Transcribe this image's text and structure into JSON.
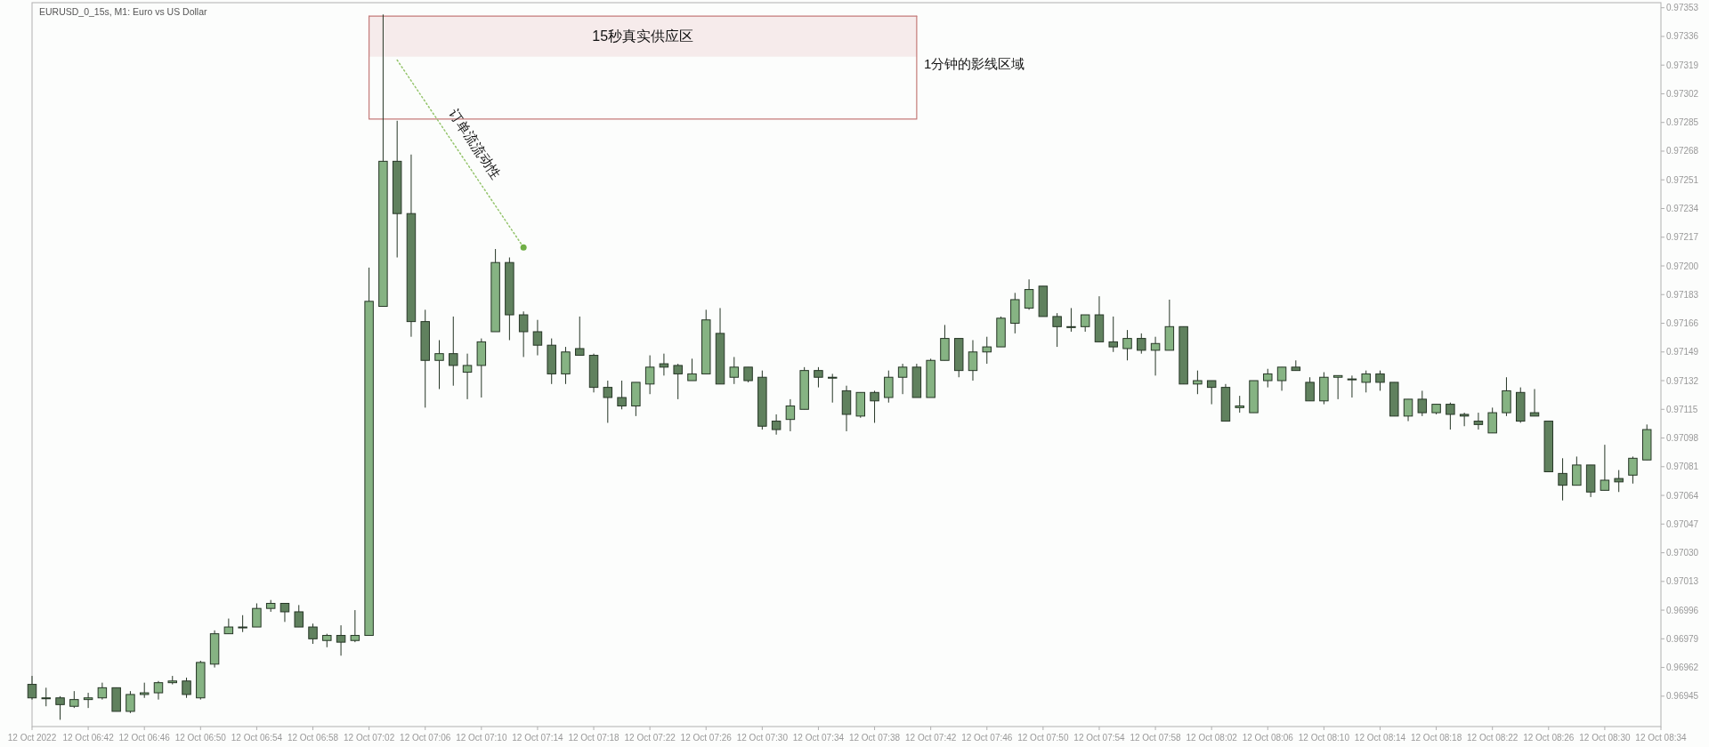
{
  "chart_data": {
    "type": "candlestick",
    "title": "EURUSD_0_15s, M1: Euro vs US Dollar",
    "colors": [
      "#60815e",
      "#86b383",
      "#60815e",
      "#86b383",
      "#86b383",
      "#86b383",
      "#60815e",
      "#86b383",
      "#86b383",
      "#86b383",
      "#86b383",
      "#60815e",
      "#86b383",
      "#86b383",
      "#86b383",
      "#86b383",
      "#86b383",
      "#86b383",
      "#60815e",
      "#60815e",
      "#60815e",
      "#86b383",
      "#60815e",
      "#86b383",
      "#86b383",
      "#86b383",
      "#60815e",
      "#60815e",
      "#60815e",
      "#86b383",
      "#60815e",
      "#86b383",
      "#86b383",
      "#86b383",
      "#60815e",
      "#60815e",
      "#60815e",
      "#60815e",
      "#86b383",
      "#60815e",
      "#60815e",
      "#60815e",
      "#60815e",
      "#86b383",
      "#86b383",
      "#60815e",
      "#60815e",
      "#86b383",
      "#86b383",
      "#60815e",
      "#86b383",
      "#60815e",
      "#60815e",
      "#60815e",
      "#86b383",
      "#86b383",
      "#60815e",
      "#86b383",
      "#60815e",
      "#86b383",
      "#60815e",
      "#86b383",
      "#86b383",
      "#60815e",
      "#86b383",
      "#86b383",
      "#60815e",
      "#86b383",
      "#86b383",
      "#86b383",
      "#86b383",
      "#86b383",
      "#60815e",
      "#60815e",
      "#86b383",
      "#86b383",
      "#60815e",
      "#60815e",
      "#86b383",
      "#60815e",
      "#86b383",
      "#86b383",
      "#60815e",
      "#86b383",
      "#60815e",
      "#60815e",
      "#86b383",
      "#86b383",
      "#86b383",
      "#86b383",
      "#60815e",
      "#60815e",
      "#86b383",
      "#86b383",
      "#86b383",
      "#86b383",
      "#60815e",
      "#60815e",
      "#86b383",
      "#60815e",
      "#86b383",
      "#60815e",
      "#60815e",
      "#60815e",
      "#86b383",
      "#86b383",
      "#60815e",
      "#60815e",
      "#60815e",
      "#60815e",
      "#86b383",
      "#60815e",
      "#86b383",
      "#60815e",
      "#86b383",
      "#86b383"
    ],
    "x": [
      "2022-10-12T06:38",
      "2022-10-12T06:39",
      "2022-10-12T06:40",
      "2022-10-12T06:41",
      "2022-10-12T06:42",
      "2022-10-12T06:43",
      "2022-10-12T06:44",
      "2022-10-12T06:45",
      "2022-10-12T06:46",
      "2022-10-12T06:47",
      "2022-10-12T06:48",
      "2022-10-12T06:49",
      "2022-10-12T06:50",
      "2022-10-12T06:51",
      "2022-10-12T06:52",
      "2022-10-12T06:53",
      "2022-10-12T06:54",
      "2022-10-12T06:55",
      "2022-10-12T06:56",
      "2022-10-12T06:57",
      "2022-10-12T06:58",
      "2022-10-12T06:59",
      "2022-10-12T07:00",
      "2022-10-12T07:01",
      "2022-10-12T07:02",
      "2022-10-12T07:03",
      "2022-10-12T07:04",
      "2022-10-12T07:05",
      "2022-10-12T07:06",
      "2022-10-12T07:07",
      "2022-10-12T07:08",
      "2022-10-12T07:09",
      "2022-10-12T07:10",
      "2022-10-12T07:11",
      "2022-10-12T07:12",
      "2022-10-12T07:13",
      "2022-10-12T07:14",
      "2022-10-12T07:15",
      "2022-10-12T07:16",
      "2022-10-12T07:17",
      "2022-10-12T07:18",
      "2022-10-12T07:19",
      "2022-10-12T07:20",
      "2022-10-12T07:21",
      "2022-10-12T07:22",
      "2022-10-12T07:23",
      "2022-10-12T07:24",
      "2022-10-12T07:25",
      "2022-10-12T07:26",
      "2022-10-12T07:27",
      "2022-10-12T07:28",
      "2022-10-12T07:29",
      "2022-10-12T07:30",
      "2022-10-12T07:31",
      "2022-10-12T07:32",
      "2022-10-12T07:33",
      "2022-10-12T07:34",
      "2022-10-12T07:35",
      "2022-10-12T07:36",
      "2022-10-12T07:37",
      "2022-10-12T07:38",
      "2022-10-12T07:39",
      "2022-10-12T07:40",
      "2022-10-12T07:41",
      "2022-10-12T07:42",
      "2022-10-12T07:43",
      "2022-10-12T07:44",
      "2022-10-12T07:45",
      "2022-10-12T07:46",
      "2022-10-12T07:47",
      "2022-10-12T07:48",
      "2022-10-12T07:49",
      "2022-10-12T07:50",
      "2022-10-12T07:51",
      "2022-10-12T07:52",
      "2022-10-12T07:53",
      "2022-10-12T07:54",
      "2022-10-12T07:55",
      "2022-10-12T07:56",
      "2022-10-12T07:57",
      "2022-10-12T07:58",
      "2022-10-12T07:59",
      "2022-10-12T08:00",
      "2022-10-12T08:01",
      "2022-10-12T08:02",
      "2022-10-12T08:03",
      "2022-10-12T08:04",
      "2022-10-12T08:05",
      "2022-10-12T08:06",
      "2022-10-12T08:07",
      "2022-10-12T08:08",
      "2022-10-12T08:09",
      "2022-10-12T08:10",
      "2022-10-12T08:11",
      "2022-10-12T08:12",
      "2022-10-12T08:13",
      "2022-10-12T08:14",
      "2022-10-12T08:15",
      "2022-10-12T08:16",
      "2022-10-12T08:17",
      "2022-10-12T08:18",
      "2022-10-12T08:19",
      "2022-10-12T08:20",
      "2022-10-12T08:21",
      "2022-10-12T08:22",
      "2022-10-12T08:23",
      "2022-10-12T08:24",
      "2022-10-12T08:25",
      "2022-10-12T08:26",
      "2022-10-12T08:27",
      "2022-10-12T08:28",
      "2022-10-12T08:29",
      "2022-10-12T08:30",
      "2022-10-12T08:31",
      "2022-10-12T08:32",
      "2022-10-12T08:33"
    ],
    "ohlc": [
      [
        0.96952,
        0.96957,
        0.96943,
        0.96944
      ],
      [
        0.96944,
        0.9695,
        0.96939,
        0.96944
      ],
      [
        0.96944,
        0.96945,
        0.96931,
        0.9694
      ],
      [
        0.96939,
        0.96948,
        0.96938,
        0.96943
      ],
      [
        0.96943,
        0.96947,
        0.96938,
        0.96944
      ],
      [
        0.96944,
        0.96953,
        0.96943,
        0.9695
      ],
      [
        0.9695,
        0.9695,
        0.96936,
        0.96936
      ],
      [
        0.96936,
        0.96948,
        0.96935,
        0.96946
      ],
      [
        0.96946,
        0.96953,
        0.96944,
        0.96947
      ],
      [
        0.96947,
        0.96954,
        0.96943,
        0.96953
      ],
      [
        0.96953,
        0.96957,
        0.96952,
        0.96954
      ],
      [
        0.96954,
        0.96956,
        0.96944,
        0.96946
      ],
      [
        0.96944,
        0.96966,
        0.96943,
        0.96965
      ],
      [
        0.96964,
        0.96984,
        0.96962,
        0.96982
      ],
      [
        0.96982,
        0.96991,
        0.96982,
        0.96986
      ],
      [
        0.96986,
        0.96993,
        0.96983,
        0.96986
      ],
      [
        0.96986,
        0.97,
        0.96986,
        0.96997
      ],
      [
        0.96997,
        0.97002,
        0.96995,
        0.97
      ],
      [
        0.97,
        0.97,
        0.96989,
        0.96995
      ],
      [
        0.96995,
        0.96999,
        0.96986,
        0.96986
      ],
      [
        0.96986,
        0.96988,
        0.96976,
        0.96979
      ],
      [
        0.96978,
        0.96982,
        0.96974,
        0.96981
      ],
      [
        0.96981,
        0.96987,
        0.96969,
        0.96977
      ],
      [
        0.96978,
        0.96996,
        0.96977,
        0.96981
      ],
      [
        0.96981,
        0.97199,
        0.96981,
        0.97179
      ],
      [
        0.97176,
        0.97349,
        0.97176,
        0.97262
      ],
      [
        0.97262,
        0.97286,
        0.97205,
        0.97231
      ],
      [
        0.97231,
        0.97266,
        0.97158,
        0.97167
      ],
      [
        0.97167,
        0.97174,
        0.97116,
        0.97144
      ],
      [
        0.97144,
        0.97156,
        0.97127,
        0.97148
      ],
      [
        0.97148,
        0.9717,
        0.97129,
        0.97141
      ],
      [
        0.97137,
        0.97148,
        0.97121,
        0.97141
      ],
      [
        0.97141,
        0.97157,
        0.97122,
        0.97155
      ],
      [
        0.97161,
        0.9721,
        0.97161,
        0.97202
      ],
      [
        0.97202,
        0.97205,
        0.97156,
        0.97171
      ],
      [
        0.97171,
        0.97173,
        0.97146,
        0.97161
      ],
      [
        0.97161,
        0.97168,
        0.97147,
        0.97153
      ],
      [
        0.97153,
        0.97157,
        0.9713,
        0.97136
      ],
      [
        0.97136,
        0.97152,
        0.9713,
        0.97149
      ],
      [
        0.97151,
        0.9717,
        0.97147,
        0.97147
      ],
      [
        0.97147,
        0.97148,
        0.97125,
        0.97128
      ],
      [
        0.97128,
        0.97132,
        0.97107,
        0.97122
      ],
      [
        0.97122,
        0.97132,
        0.97115,
        0.97117
      ],
      [
        0.97117,
        0.97131,
        0.97111,
        0.97131
      ],
      [
        0.9713,
        0.97147,
        0.97124,
        0.9714
      ],
      [
        0.97142,
        0.97148,
        0.97135,
        0.9714
      ],
      [
        0.97141,
        0.97142,
        0.97121,
        0.97136
      ],
      [
        0.97132,
        0.97145,
        0.97132,
        0.97136
      ],
      [
        0.97136,
        0.97174,
        0.97136,
        0.97168
      ],
      [
        0.9716,
        0.97175,
        0.9713,
        0.9713
      ],
      [
        0.97134,
        0.97146,
        0.9713,
        0.9714
      ],
      [
        0.9714,
        0.9714,
        0.97131,
        0.97132
      ],
      [
        0.97134,
        0.97138,
        0.97103,
        0.97105
      ],
      [
        0.97108,
        0.97112,
        0.971,
        0.97103
      ],
      [
        0.97109,
        0.97121,
        0.97102,
        0.97117
      ],
      [
        0.97115,
        0.9714,
        0.97115,
        0.97138
      ],
      [
        0.97138,
        0.9714,
        0.97128,
        0.97134
      ],
      [
        0.97134,
        0.97136,
        0.97119,
        0.97134
      ],
      [
        0.97126,
        0.97129,
        0.97102,
        0.97112
      ],
      [
        0.97111,
        0.97125,
        0.9711,
        0.97125
      ],
      [
        0.97125,
        0.97126,
        0.97107,
        0.9712
      ],
      [
        0.97122,
        0.97138,
        0.97119,
        0.97134
      ],
      [
        0.97134,
        0.97142,
        0.97124,
        0.9714
      ],
      [
        0.9714,
        0.97142,
        0.97122,
        0.97122
      ],
      [
        0.97122,
        0.97145,
        0.97122,
        0.97144
      ],
      [
        0.97144,
        0.97165,
        0.97144,
        0.97157
      ],
      [
        0.97157,
        0.97157,
        0.97134,
        0.97138
      ],
      [
        0.97138,
        0.97156,
        0.97132,
        0.97149
      ],
      [
        0.97149,
        0.97158,
        0.97142,
        0.97152
      ],
      [
        0.97152,
        0.9717,
        0.97152,
        0.97169
      ],
      [
        0.97166,
        0.97184,
        0.9716,
        0.9718
      ],
      [
        0.97175,
        0.97192,
        0.97174,
        0.97186
      ],
      [
        0.97188,
        0.97188,
        0.9717,
        0.9717
      ],
      [
        0.9717,
        0.97172,
        0.97152,
        0.97164
      ],
      [
        0.97164,
        0.97175,
        0.97161,
        0.97164
      ],
      [
        0.97164,
        0.97171,
        0.97161,
        0.97171
      ],
      [
        0.97171,
        0.97182,
        0.97155,
        0.97155
      ],
      [
        0.97155,
        0.9717,
        0.97149,
        0.97152
      ],
      [
        0.97151,
        0.97162,
        0.97144,
        0.97157
      ],
      [
        0.97157,
        0.9716,
        0.97148,
        0.9715
      ],
      [
        0.9715,
        0.97158,
        0.97135,
        0.97154
      ],
      [
        0.9715,
        0.9718,
        0.9715,
        0.97164
      ],
      [
        0.97164,
        0.97164,
        0.9713,
        0.9713
      ],
      [
        0.9713,
        0.97138,
        0.97124,
        0.97132
      ],
      [
        0.97132,
        0.97132,
        0.97118,
        0.97128
      ],
      [
        0.97128,
        0.9713,
        0.97108,
        0.97108
      ],
      [
        0.97116,
        0.97123,
        0.97113,
        0.97117
      ],
      [
        0.97113,
        0.97132,
        0.97113,
        0.97132
      ],
      [
        0.97132,
        0.97139,
        0.97128,
        0.97136
      ],
      [
        0.97132,
        0.9714,
        0.97126,
        0.9714
      ],
      [
        0.9714,
        0.97144,
        0.97138,
        0.97138
      ],
      [
        0.97131,
        0.97134,
        0.9712,
        0.9712
      ],
      [
        0.9712,
        0.97137,
        0.97118,
        0.97134
      ],
      [
        0.97134,
        0.97135,
        0.97121,
        0.97135
      ],
      [
        0.97133,
        0.97135,
        0.97122,
        0.97133
      ],
      [
        0.97131,
        0.97138,
        0.97125,
        0.97136
      ],
      [
        0.97136,
        0.97138,
        0.97126,
        0.97131
      ],
      [
        0.97131,
        0.97131,
        0.97111,
        0.97111
      ],
      [
        0.97111,
        0.97121,
        0.97108,
        0.97121
      ],
      [
        0.97121,
        0.97126,
        0.97111,
        0.97113
      ],
      [
        0.97113,
        0.97118,
        0.97112,
        0.97118
      ],
      [
        0.97118,
        0.97119,
        0.97103,
        0.97112
      ],
      [
        0.97112,
        0.97113,
        0.97105,
        0.97111
      ],
      [
        0.97108,
        0.97113,
        0.97103,
        0.97106
      ],
      [
        0.97101,
        0.97116,
        0.97101,
        0.97113
      ],
      [
        0.97113,
        0.97134,
        0.97111,
        0.97126
      ],
      [
        0.97125,
        0.97128,
        0.97107,
        0.97108
      ],
      [
        0.97113,
        0.97127,
        0.97111,
        0.97111
      ],
      [
        0.97108,
        0.97108,
        0.97078,
        0.97078
      ],
      [
        0.97077,
        0.97086,
        0.97061,
        0.9707
      ],
      [
        0.9707,
        0.97087,
        0.9707,
        0.97082
      ],
      [
        0.97082,
        0.97082,
        0.97063,
        0.97066
      ],
      [
        0.97067,
        0.97094,
        0.97067,
        0.97073
      ],
      [
        0.97074,
        0.97079,
        0.97066,
        0.97072
      ],
      [
        0.97076,
        0.97087,
        0.97071,
        0.97086
      ],
      [
        0.97085,
        0.97106,
        0.97085,
        0.97103
      ]
    ],
    "xlim": [
      "2022-10-12T06:38",
      "2022-10-12T08:34"
    ],
    "ylim": [
      0.96927,
      0.97356
    ],
    "xticks": [
      {
        "value": "2022-10-12T06:38",
        "label": "12 Oct 2022"
      },
      {
        "value": "2022-10-12T06:42",
        "label": "12 Oct 06:42"
      },
      {
        "value": "2022-10-12T06:46",
        "label": "12 Oct 06:46"
      },
      {
        "value": "2022-10-12T06:50",
        "label": "12 Oct 06:50"
      },
      {
        "value": "2022-10-12T06:54",
        "label": "12 Oct 06:54"
      },
      {
        "value": "2022-10-12T06:58",
        "label": "12 Oct 06:58"
      },
      {
        "value": "2022-10-12T07:02",
        "label": "12 Oct 07:02"
      },
      {
        "value": "2022-10-12T07:06",
        "label": "12 Oct 07:06"
      },
      {
        "value": "2022-10-12T07:10",
        "label": "12 Oct 07:10"
      },
      {
        "value": "2022-10-12T07:14",
        "label": "12 Oct 07:14"
      },
      {
        "value": "2022-10-12T07:18",
        "label": "12 Oct 07:18"
      },
      {
        "value": "2022-10-12T07:22",
        "label": "12 Oct 07:22"
      },
      {
        "value": "2022-10-12T07:26",
        "label": "12 Oct 07:26"
      },
      {
        "value": "2022-10-12T07:30",
        "label": "12 Oct 07:30"
      },
      {
        "value": "2022-10-12T07:34",
        "label": "12 Oct 07:34"
      },
      {
        "value": "2022-10-12T07:38",
        "label": "12 Oct 07:38"
      },
      {
        "value": "2022-10-12T07:42",
        "label": "12 Oct 07:42"
      },
      {
        "value": "2022-10-12T07:46",
        "label": "12 Oct 07:46"
      },
      {
        "value": "2022-10-12T07:50",
        "label": "12 Oct 07:50"
      },
      {
        "value": "2022-10-12T07:54",
        "label": "12 Oct 07:54"
      },
      {
        "value": "2022-10-12T07:58",
        "label": "12 Oct 07:58"
      },
      {
        "value": "2022-10-12T08:02",
        "label": "12 Oct 08:02"
      },
      {
        "value": "2022-10-12T08:06",
        "label": "12 Oct 08:06"
      },
      {
        "value": "2022-10-12T08:10",
        "label": "12 Oct 08:10"
      },
      {
        "value": "2022-10-12T08:14",
        "label": "12 Oct 08:14"
      },
      {
        "value": "2022-10-12T08:18",
        "label": "12 Oct 08:18"
      },
      {
        "value": "2022-10-12T08:22",
        "label": "12 Oct 08:22"
      },
      {
        "value": "2022-10-12T08:26",
        "label": "12 Oct 08:26"
      },
      {
        "value": "2022-10-12T08:30",
        "label": "12 Oct 08:30"
      },
      {
        "value": "2022-10-12T08:34",
        "label": "12 Oct 08:34"
      }
    ],
    "yticks": [
      0.97353,
      0.97336,
      0.97319,
      0.97302,
      0.97285,
      0.97268,
      0.97251,
      0.97234,
      0.97217,
      {
        "value": 0.972,
        "label": "0.97200"
      },
      0.97183,
      0.97166,
      0.97149,
      0.97132,
      0.97115,
      0.97098,
      0.97081,
      0.97064,
      0.97047,
      {
        "value": 0.9703,
        "label": "0.97030"
      },
      0.97013,
      0.96996,
      0.96979,
      0.96962,
      0.96945
    ],
    "series": [
      {
        "type": "line",
        "x": [
          "2022-10-12T07:02",
          "2022-10-12T07:41"
        ],
        "values": [
          0.97348,
          0.97348
        ],
        "lower": [
          0.97324,
          0.97324
        ],
        "upper": [
          0.97348,
          0.97348
        ],
        "color": "#c47a78"
      },
      {
        "type": "line",
        "x": [
          "2022-10-12T07:02",
          "2022-10-12T07:02",
          "2022-10-12T07:41",
          "2022-10-12T07:41"
        ],
        "values": [
          0.97348,
          0.97287,
          0.97287,
          0.97348
        ],
        "color": "#c47a78"
      },
      {
        "type": "line",
        "x": [
          "2022-10-12T07:04",
          "2022-10-12T07:13"
        ],
        "values": [
          0.97322,
          0.97211
        ],
        "color": "#94c46c",
        "line_style": "dotted"
      },
      {
        "type": "scatter",
        "x": [
          "2022-10-12T07:13"
        ],
        "values": [
          0.97211
        ],
        "color": "#6fae45",
        "marker": "circle"
      }
    ],
    "annotations": [
      "15秒真实供应区",
      {
        "text": "1分钟的影线区域",
        "x": "2022-10-12T07:41",
        "y": 0.9732
      },
      "订单流流动性"
    ]
  }
}
